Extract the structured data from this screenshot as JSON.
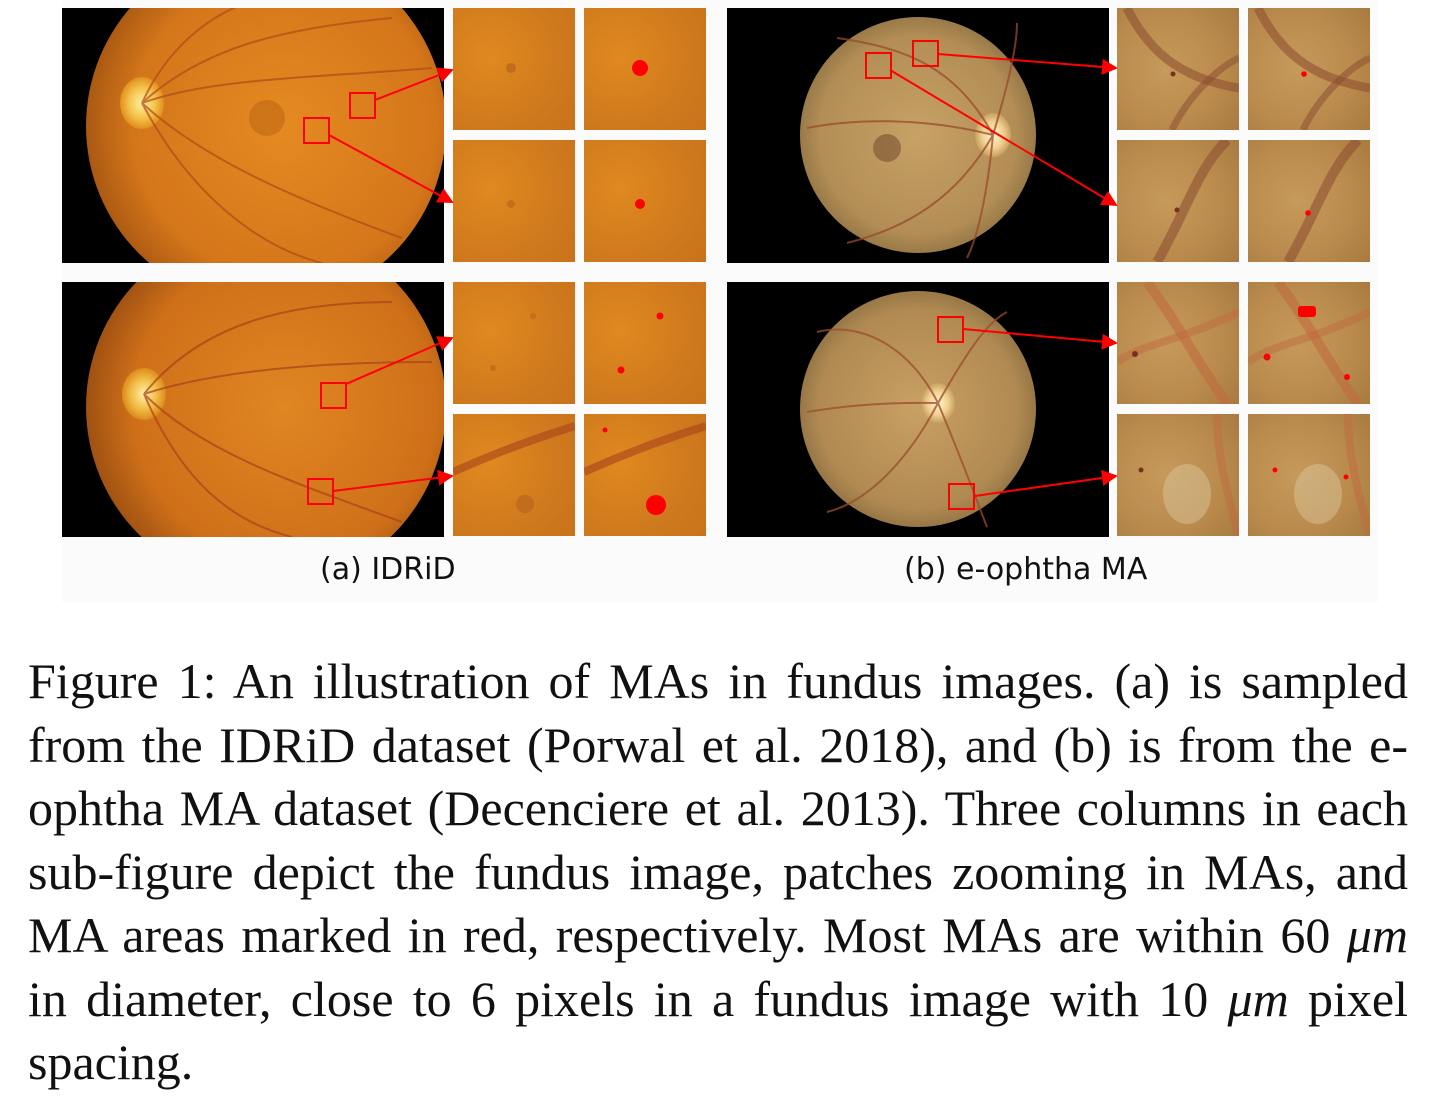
{
  "figure": {
    "subfigures": [
      {
        "label": "(a) IDRiD"
      },
      {
        "label": "(b) e-ophtha MA"
      }
    ]
  },
  "caption": {
    "text_1": "Figure 1: An illustration of MAs in fundus images. (a) is sampled from the IDRiD dataset (Porwal et al. 2018), and (b) is from the e-ophtha MA dataset (Decenciere et al. 2013). Three columns in each sub-figure depict the fundus image, patches zooming in MAs, and MA areas marked in red, respectively. Most MAs are within 60 ",
    "unit_1": "μm",
    "text_2": " in diameter, close to 6 pixels in a fundus image with 10 ",
    "unit_2": "μm",
    "text_3": " pixel spacing."
  },
  "colors": {
    "annotation_red": "#ff0000",
    "idrid_fundus": "#d4761a",
    "ophtha_fundus": "#b28d55"
  }
}
